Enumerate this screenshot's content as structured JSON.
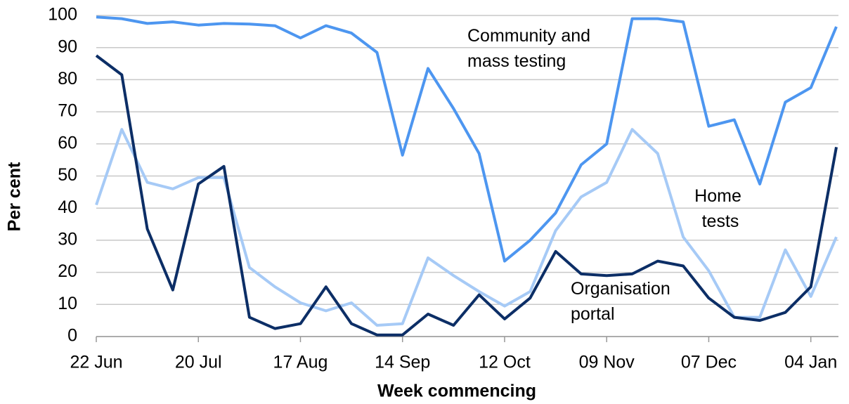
{
  "chart_data": {
    "type": "line",
    "x_label": "Week commencing",
    "y_label": "Per cent",
    "categories": [
      "22 Jun",
      null,
      null,
      null,
      "20 Jul",
      null,
      null,
      null,
      "17 Aug",
      null,
      null,
      null,
      "14 Sep",
      null,
      null,
      null,
      "12 Oct",
      null,
      null,
      null,
      "09 Nov",
      null,
      null,
      null,
      "07 Dec",
      null,
      null,
      null,
      "04 Jan",
      null
    ],
    "series": [
      {
        "name": "Community and mass testing",
        "color": "#4d96f0",
        "values": [
          99.5,
          99,
          97.5,
          98,
          97,
          97.5,
          97.3,
          96.8,
          93,
          96.8,
          94.5,
          88.5,
          56.5,
          83.5,
          71,
          57,
          23.5,
          30,
          38.5,
          53.5,
          60,
          99,
          99,
          98,
          65.5,
          67.5,
          47.5,
          73,
          77.5,
          96.5
        ]
      },
      {
        "name": "Home tests",
        "color": "#a6caf6",
        "values": [
          41,
          64.5,
          48,
          46,
          49.5,
          49.5,
          21.5,
          15.5,
          10.5,
          8,
          10.5,
          3.5,
          4,
          24.5,
          19,
          14,
          9.5,
          14,
          33,
          43.5,
          48,
          64.5,
          57,
          31,
          20.5,
          6,
          6,
          27,
          12.5,
          31
        ]
      },
      {
        "name": "Organisation portal",
        "color": "#0c2e66",
        "values": [
          87.5,
          81.5,
          33.5,
          14.5,
          47.5,
          53,
          6,
          2.5,
          4,
          15.5,
          4,
          0.5,
          0.5,
          7,
          3.5,
          13,
          5.5,
          12,
          26.5,
          19.5,
          19,
          19.5,
          23.5,
          22,
          12,
          6,
          5,
          7.5,
          15.5,
          59
        ]
      }
    ],
    "ylim": [
      0,
      100
    ],
    "yticks": [
      0,
      10,
      20,
      30,
      40,
      50,
      60,
      70,
      80,
      90,
      100
    ],
    "grid": true
  }
}
